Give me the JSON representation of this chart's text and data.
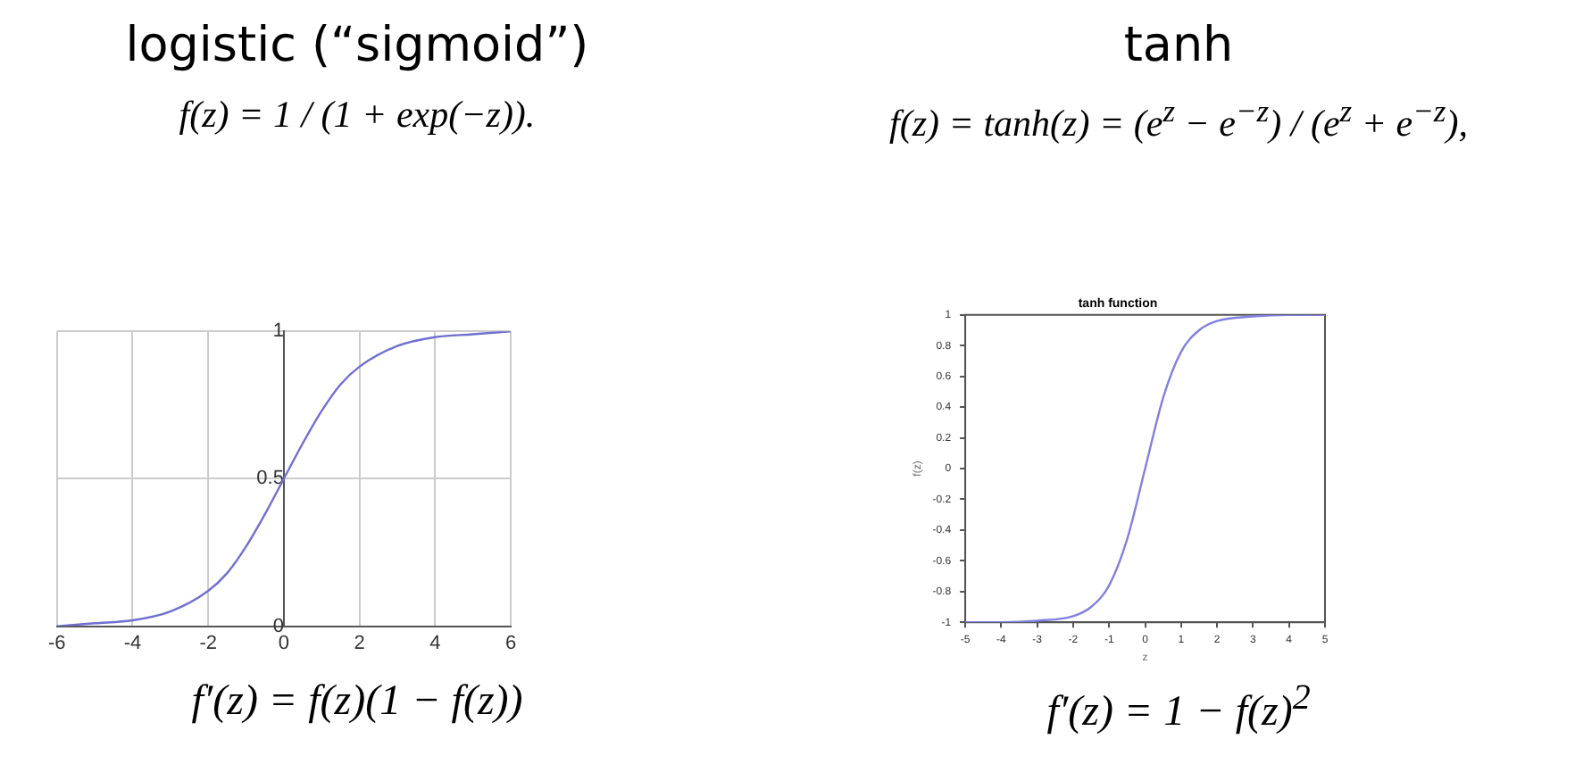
{
  "chart_data": [
    {
      "type": "line",
      "title": "logistic (“sigmoid”)",
      "subtitle": "f(z) = 1 / (1 + exp(−z)).",
      "annotations": [
        "f′(z) = f(z)(1 − f(z))"
      ],
      "x": [
        -6,
        -5,
        -4,
        -3,
        -2,
        -1.5,
        -1,
        -0.5,
        0,
        0.5,
        1,
        1.5,
        2,
        3,
        4,
        5,
        6
      ],
      "series": [
        {
          "color": "#6f6fd0",
          "values": [
            0.0,
            0.01,
            0.02,
            0.05,
            0.12,
            0.18,
            0.27,
            0.38,
            0.5,
            0.62,
            0.73,
            0.82,
            0.88,
            0.95,
            0.98,
            0.99,
            1.0
          ]
        }
      ],
      "xlim": [
        -6,
        6
      ],
      "xticks": [
        -6,
        -4,
        -2,
        0,
        2,
        4,
        6
      ],
      "ylim": [
        0,
        1
      ],
      "yticks": [
        0,
        0.5,
        1
      ],
      "grid": true,
      "marker": "none",
      "line_style": "solid"
    },
    {
      "type": "line",
      "title": "tanh",
      "subtitle": "f(z) = tanh(z) = (e$^{z}$ − e$^{−z}$) / (e$^{z}$ + e$^{−z}$),",
      "annotations": [
        "tanh function",
        "f′(z) = 1 − f(z)$^{2}$"
      ],
      "xlabel": "z",
      "ylabel": "f(z)",
      "x": [
        -5,
        -4,
        -3,
        -2,
        -1.5,
        -1,
        -0.5,
        0,
        0.5,
        1,
        1.5,
        2,
        3,
        4,
        5
      ],
      "series": [
        {
          "color": "#8080e0",
          "values": [
            -1.0,
            -1.0,
            -0.99,
            -0.96,
            -0.9,
            -0.76,
            -0.46,
            0.0,
            0.46,
            0.76,
            0.9,
            0.96,
            0.99,
            1.0,
            1.0
          ]
        }
      ],
      "xlim": [
        -5,
        5
      ],
      "xticks": [
        -5,
        -4,
        -3,
        -2,
        -1,
        0,
        1,
        2,
        3,
        4,
        5
      ],
      "ylim": [
        -1,
        1
      ],
      "yticks": [
        -1,
        -0.8,
        -0.6,
        -0.4,
        -0.2,
        0,
        0.2,
        0.4,
        0.6,
        0.8,
        1
      ],
      "grid": false,
      "marker": "none",
      "line_style": "solid"
    }
  ]
}
